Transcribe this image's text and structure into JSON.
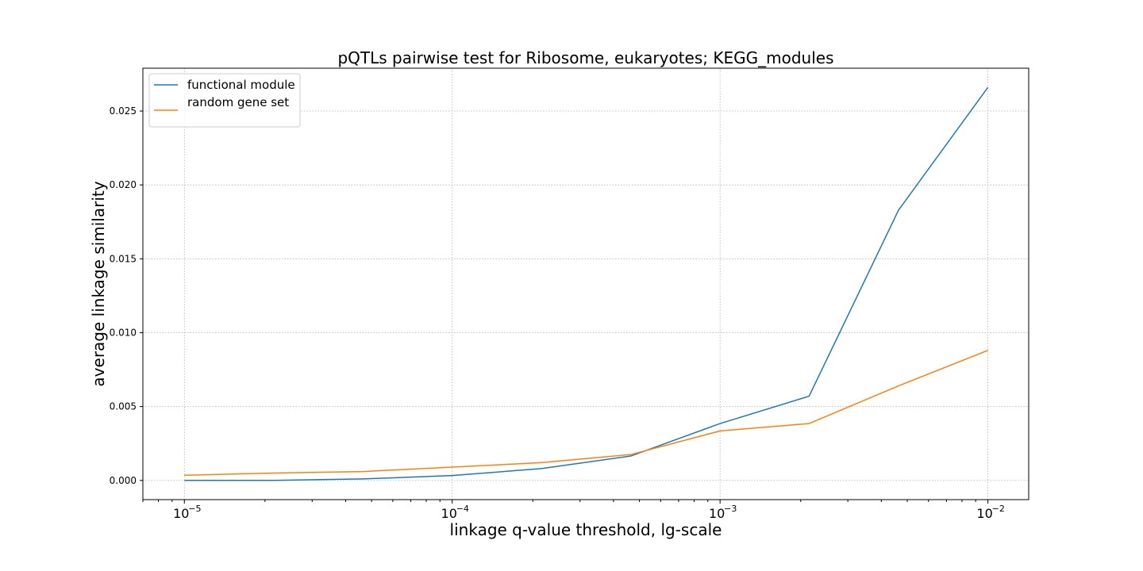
{
  "chart_data": {
    "type": "line",
    "title": "pQTLs pairwise test for Ribosome, eukaryotes; KEGG_modules",
    "xlabel": "linkage q-value threshold, lg-scale",
    "ylabel": "average linkage similarity",
    "xscale": "log",
    "xlim": [
      7e-06,
      0.0142
    ],
    "ylim": [
      -0.0013,
      0.0279
    ],
    "grid": true,
    "legend_position": "top-left",
    "x": [
      1e-05,
      2.15e-05,
      4.64e-05,
      0.0001,
      0.000215,
      0.000464,
      0.001,
      0.00215,
      0.00464,
      0.01
    ],
    "series": [
      {
        "name": "functional module",
        "color": "#1f77b4",
        "values": [
          0.0,
          0.0,
          0.0001,
          0.00033,
          0.0008,
          0.00165,
          0.00385,
          0.0057,
          0.0183,
          0.0266
        ]
      },
      {
        "name": "random gene set",
        "color": "#ff7f0e",
        "values": [
          0.00035,
          0.0005,
          0.0006,
          0.0009,
          0.0012,
          0.00175,
          0.00335,
          0.00385,
          0.0064,
          0.0088
        ]
      }
    ],
    "yticks": [
      {
        "value": 0.0,
        "label": "0.000"
      },
      {
        "value": 0.005,
        "label": "0.005"
      },
      {
        "value": 0.01,
        "label": "0.010"
      },
      {
        "value": 0.015,
        "label": "0.015"
      },
      {
        "value": 0.02,
        "label": "0.020"
      },
      {
        "value": 0.025,
        "label": "0.025"
      }
    ],
    "xticks": [
      {
        "value": 1e-05,
        "base": "10",
        "exponent": "−5"
      },
      {
        "value": 0.0001,
        "base": "10",
        "exponent": "−4"
      },
      {
        "value": 0.001,
        "base": "10",
        "exponent": "−3"
      },
      {
        "value": 0.01,
        "base": "10",
        "exponent": "−2"
      }
    ]
  }
}
